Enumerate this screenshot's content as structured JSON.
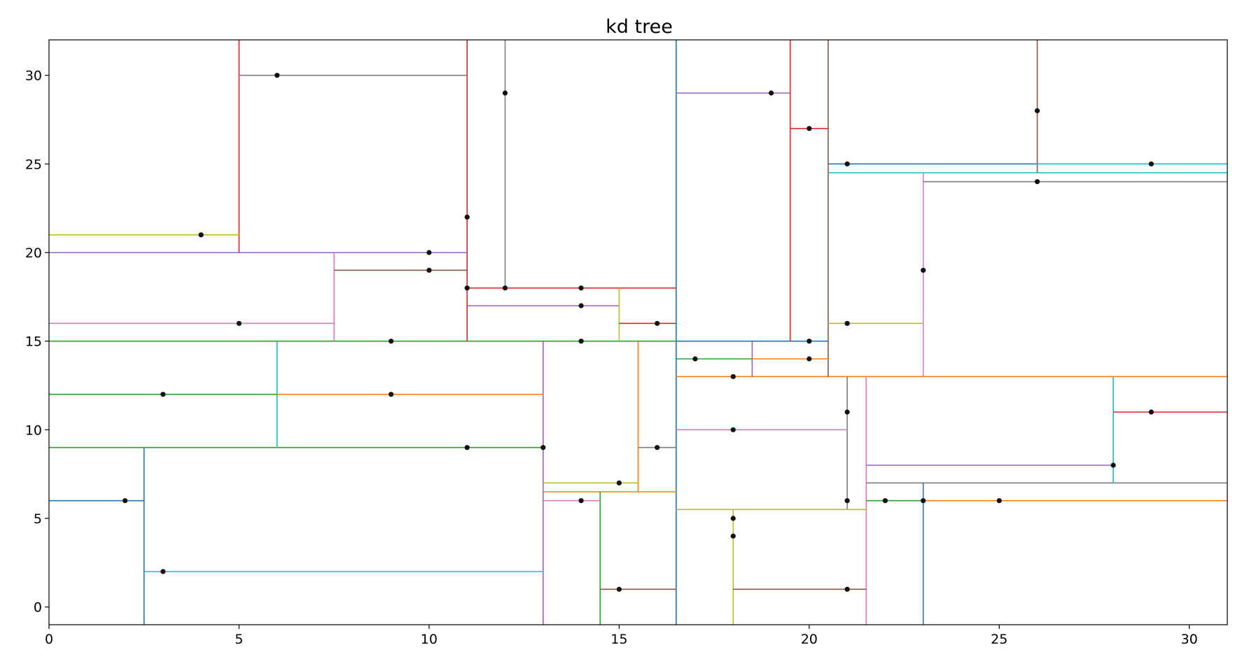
{
  "chart_data": {
    "type": "scatter",
    "title": "kd tree",
    "xlabel": "",
    "ylabel": "",
    "xlim": [
      0,
      31
    ],
    "ylim": [
      -1,
      32
    ],
    "grid": false,
    "x_ticks": [
      0,
      5,
      10,
      15,
      20,
      25,
      30
    ],
    "y_ticks": [
      0,
      5,
      10,
      15,
      20,
      25,
      30
    ],
    "x_tick_labels": [
      "0",
      "5",
      "10",
      "15",
      "20",
      "25",
      "30"
    ],
    "y_tick_labels": [
      "0",
      "5",
      "10",
      "15",
      "20",
      "25",
      "30"
    ],
    "point_color": "#111111",
    "points": [
      [
        2,
        6
      ],
      [
        3,
        2
      ],
      [
        3,
        12
      ],
      [
        4,
        21
      ],
      [
        5,
        16
      ],
      [
        6,
        30
      ],
      [
        9,
        15
      ],
      [
        9,
        12
      ],
      [
        10,
        20
      ],
      [
        10,
        19
      ],
      [
        11,
        22
      ],
      [
        11,
        18
      ],
      [
        11,
        9
      ],
      [
        12,
        29
      ],
      [
        12,
        18
      ],
      [
        13,
        9
      ],
      [
        14,
        18
      ],
      [
        14,
        17
      ],
      [
        14,
        15
      ],
      [
        14,
        6
      ],
      [
        15,
        7
      ],
      [
        15,
        1
      ],
      [
        16,
        16
      ],
      [
        16,
        9
      ],
      [
        17,
        14
      ],
      [
        18,
        13
      ],
      [
        18,
        10
      ],
      [
        18,
        5
      ],
      [
        18,
        4
      ],
      [
        19,
        29
      ],
      [
        20,
        27
      ],
      [
        20,
        15
      ],
      [
        20,
        14
      ],
      [
        21,
        25
      ],
      [
        21,
        16
      ],
      [
        21,
        11
      ],
      [
        21,
        6
      ],
      [
        21,
        1
      ],
      [
        22,
        6
      ],
      [
        23,
        19
      ],
      [
        23,
        6
      ],
      [
        25,
        6
      ],
      [
        26,
        28
      ],
      [
        26,
        24
      ],
      [
        28,
        8
      ],
      [
        29,
        25
      ],
      [
        29,
        11
      ]
    ],
    "split_lines": [
      {
        "x1": 16.5,
        "y1": -1,
        "x2": 16.5,
        "y2": 32,
        "color": "#1f77b4"
      },
      {
        "x1": 0,
        "y1": 15,
        "x2": 16.5,
        "y2": 15,
        "color": "#2ca02c"
      },
      {
        "x1": 16.5,
        "y1": 13,
        "x2": 31,
        "y2": 13,
        "color": "#ff7f0e"
      },
      {
        "x1": 11,
        "y1": 15,
        "x2": 11,
        "y2": 32,
        "color": "#d62728"
      },
      {
        "x1": 13,
        "y1": -1,
        "x2": 13,
        "y2": 15,
        "color": "#9467bd"
      },
      {
        "x1": 20.5,
        "y1": 13,
        "x2": 20.5,
        "y2": 32,
        "color": "#8c564b"
      },
      {
        "x1": 21.5,
        "y1": -1,
        "x2": 21.5,
        "y2": 13,
        "color": "#e377c2"
      },
      {
        "x1": 0,
        "y1": 20,
        "x2": 11,
        "y2": 20,
        "color": "#9467bd"
      },
      {
        "x1": 12,
        "y1": 18,
        "x2": 12,
        "y2": 32,
        "color": "#7f7f7f"
      },
      {
        "x1": 0,
        "y1": 9,
        "x2": 13,
        "y2": 9,
        "color": "#2ca02c"
      },
      {
        "x1": 13,
        "y1": 6.5,
        "x2": 16.5,
        "y2": 6.5,
        "color": "#ff7f0e"
      },
      {
        "x1": 16.5,
        "y1": 15,
        "x2": 20.5,
        "y2": 15,
        "color": "#1f77b4"
      },
      {
        "x1": 20.5,
        "y1": 24.5,
        "x2": 31,
        "y2": 24.5,
        "color": "#17becf"
      },
      {
        "x1": 16.5,
        "y1": 5.5,
        "x2": 21.5,
        "y2": 5.5,
        "color": "#bcbd22"
      },
      {
        "x1": 21.5,
        "y1": 7,
        "x2": 31,
        "y2": 7,
        "color": "#7f7f7f"
      },
      {
        "x1": 5,
        "y1": 20,
        "x2": 5,
        "y2": 32,
        "color": "#d62728"
      },
      {
        "x1": 7.5,
        "y1": 15,
        "x2": 7.5,
        "y2": 20,
        "color": "#e377c2"
      },
      {
        "x1": 11,
        "y1": 18,
        "x2": 16.5,
        "y2": 18,
        "color": "#d62728"
      },
      {
        "x1": 2.5,
        "y1": -1,
        "x2": 2.5,
        "y2": 9,
        "color": "#1f77b4"
      },
      {
        "x1": 6,
        "y1": 9,
        "x2": 6,
        "y2": 15,
        "color": "#17becf"
      },
      {
        "x1": 14.5,
        "y1": -1,
        "x2": 14.5,
        "y2": 6.5,
        "color": "#2ca02c"
      },
      {
        "x1": 15.5,
        "y1": 6.5,
        "x2": 15.5,
        "y2": 15,
        "color": "#ff7f0e"
      },
      {
        "x1": 19.5,
        "y1": 15,
        "x2": 19.5,
        "y2": 32,
        "color": "#d62728"
      },
      {
        "x1": 18.5,
        "y1": 13,
        "x2": 18.5,
        "y2": 15,
        "color": "#9467bd"
      },
      {
        "x1": 23,
        "y1": 13,
        "x2": 23,
        "y2": 24.5,
        "color": "#e377c2"
      },
      {
        "x1": 26,
        "y1": 24.5,
        "x2": 26,
        "y2": 32,
        "color": "#8c564b"
      },
      {
        "x1": 18,
        "y1": -1,
        "x2": 18,
        "y2": 5.5,
        "color": "#bcbd22"
      },
      {
        "x1": 21,
        "y1": 5.5,
        "x2": 21,
        "y2": 13,
        "color": "#7f7f7f"
      },
      {
        "x1": 23,
        "y1": -1,
        "x2": 23,
        "y2": 7,
        "color": "#1f77b4"
      },
      {
        "x1": 28,
        "y1": 7,
        "x2": 28,
        "y2": 13,
        "color": "#17becf"
      },
      {
        "x1": 0,
        "y1": 21,
        "x2": 5,
        "y2": 21,
        "color": "#bcbd22"
      },
      {
        "x1": 5,
        "y1": 30,
        "x2": 11,
        "y2": 30,
        "color": "#7f7f7f"
      },
      {
        "x1": 0,
        "y1": 16,
        "x2": 7.5,
        "y2": 16,
        "color": "#e377c2"
      },
      {
        "x1": 7.5,
        "y1": 19,
        "x2": 11,
        "y2": 19,
        "color": "#8c564b"
      },
      {
        "x1": 11,
        "y1": 17,
        "x2": 15,
        "y2": 17,
        "color": "#9467bd"
      },
      {
        "x1": 15,
        "y1": 15,
        "x2": 15,
        "y2": 18,
        "color": "#bcbd22"
      },
      {
        "x1": 15,
        "y1": 16,
        "x2": 16.5,
        "y2": 16,
        "color": "#d62728"
      },
      {
        "x1": 0,
        "y1": 6,
        "x2": 2.5,
        "y2": 6,
        "color": "#1f77b4"
      },
      {
        "x1": 2.5,
        "y1": 2,
        "x2": 13,
        "y2": 2,
        "color": "#17becf"
      },
      {
        "x1": 0,
        "y1": 12,
        "x2": 6,
        "y2": 12,
        "color": "#2ca02c"
      },
      {
        "x1": 6,
        "y1": 12,
        "x2": 13,
        "y2": 12,
        "color": "#ff7f0e"
      },
      {
        "x1": 13,
        "y1": 6,
        "x2": 14.5,
        "y2": 6,
        "color": "#e377c2"
      },
      {
        "x1": 14.5,
        "y1": 1,
        "x2": 16.5,
        "y2": 1,
        "color": "#8c564b"
      },
      {
        "x1": 13,
        "y1": 7,
        "x2": 15.5,
        "y2": 7,
        "color": "#bcbd22"
      },
      {
        "x1": 15.5,
        "y1": 9,
        "x2": 16.5,
        "y2": 9,
        "color": "#7f7f7f"
      },
      {
        "x1": 16.5,
        "y1": 29,
        "x2": 19.5,
        "y2": 29,
        "color": "#9467bd"
      },
      {
        "x1": 19.5,
        "y1": 27,
        "x2": 20.5,
        "y2": 27,
        "color": "#d62728"
      },
      {
        "x1": 16.5,
        "y1": 14,
        "x2": 18.5,
        "y2": 14,
        "color": "#2ca02c"
      },
      {
        "x1": 18.5,
        "y1": 14,
        "x2": 20.5,
        "y2": 14,
        "color": "#ff7f0e"
      },
      {
        "x1": 20.5,
        "y1": 16,
        "x2": 23,
        "y2": 16,
        "color": "#bcbd22"
      },
      {
        "x1": 23,
        "y1": 24,
        "x2": 31,
        "y2": 24,
        "color": "#7f7f7f"
      },
      {
        "x1": 20.5,
        "y1": 25,
        "x2": 26,
        "y2": 25,
        "color": "#1f77b4"
      },
      {
        "x1": 26,
        "y1": 25,
        "x2": 31,
        "y2": 25,
        "color": "#17becf"
      },
      {
        "x1": 18,
        "y1": 1,
        "x2": 21.5,
        "y2": 1,
        "color": "#8c564b"
      },
      {
        "x1": 16.5,
        "y1": 10,
        "x2": 21,
        "y2": 10,
        "color": "#e377c2"
      },
      {
        "x1": 21.5,
        "y1": 6,
        "x2": 23,
        "y2": 6,
        "color": "#2ca02c"
      },
      {
        "x1": 23,
        "y1": 6,
        "x2": 31,
        "y2": 6,
        "color": "#ff7f0e"
      },
      {
        "x1": 21.5,
        "y1": 8,
        "x2": 28,
        "y2": 8,
        "color": "#9467bd"
      },
      {
        "x1": 28,
        "y1": 11,
        "x2": 31,
        "y2": 11,
        "color": "#d62728"
      }
    ]
  }
}
